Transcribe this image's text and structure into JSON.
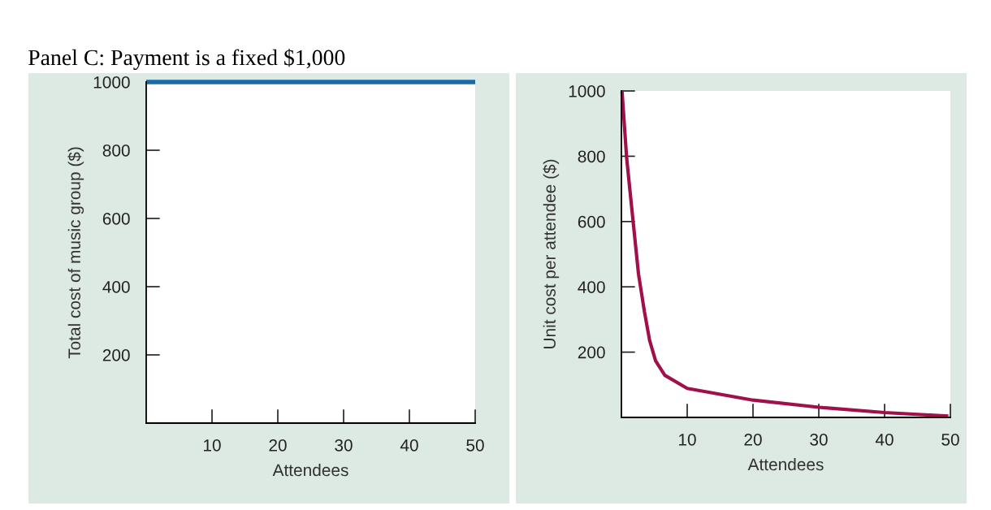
{
  "chart_data": [
    {
      "type": "line",
      "title": "Panel C: Payment is a fixed $1,000",
      "xlabel": "Attendees",
      "ylabel": "Total cost of music group ($)",
      "xlim": [
        0,
        50
      ],
      "ylim": [
        0,
        1000
      ],
      "xticks": [
        10,
        20,
        30,
        40,
        50
      ],
      "yticks": [
        200,
        400,
        600,
        800,
        1000
      ],
      "grid": false,
      "legend": false,
      "series": [
        {
          "color": "#1a6aa8",
          "x": [
            0,
            50
          ],
          "values": [
            1000,
            1000
          ]
        }
      ]
    },
    {
      "type": "line",
      "xlabel": "Attendees",
      "ylabel": "Unit cost per attendee ($)",
      "xlim": [
        0,
        50
      ],
      "ylim": [
        0,
        1000
      ],
      "xticks": [
        10,
        20,
        30,
        40,
        50
      ],
      "yticks": [
        200,
        400,
        600,
        800,
        1000
      ],
      "grid": false,
      "legend": false,
      "series": [
        {
          "color": "#a0104a",
          "x": [
            0.1,
            0.8,
            1.7,
            2.6,
            3.5,
            4.3,
            5.2,
            6.6,
            10,
            20,
            30,
            40,
            49.7
          ],
          "values": [
            998,
            794,
            616,
            439,
            324,
            235,
            173,
            129,
            89,
            53,
            31,
            15,
            4
          ]
        }
      ]
    }
  ]
}
